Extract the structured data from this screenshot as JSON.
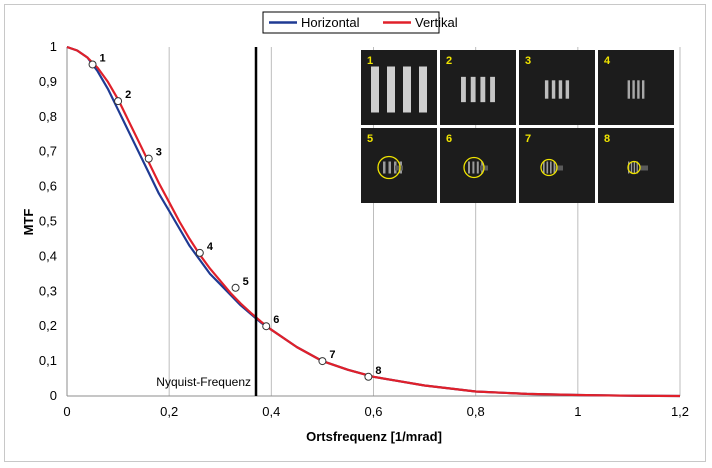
{
  "chart_data": {
    "type": "line",
    "xlabel": "Ortsfrequenz [1/mrad]",
    "ylabel": "MTF",
    "xlim": [
      0,
      1.2
    ],
    "ylim": [
      0,
      1
    ],
    "xticks": [
      "0",
      "0,2",
      "0,4",
      "0,6",
      "0,8",
      "1",
      "1,2"
    ],
    "yticks": [
      "0",
      "0,1",
      "0,2",
      "0,3",
      "0,4",
      "0,5",
      "0,6",
      "0,7",
      "0,8",
      "0,9",
      "1"
    ],
    "grid": "vertical",
    "legend_position": "top-center",
    "series": [
      {
        "name": "Horizontal",
        "color": "#1f3a93",
        "x": [
          0,
          0.02,
          0.04,
          0.06,
          0.08,
          0.1,
          0.12,
          0.14,
          0.16,
          0.18,
          0.2,
          0.22,
          0.24,
          0.26,
          0.28,
          0.3,
          0.32,
          0.34,
          0.36,
          0.38,
          0.4,
          0.45,
          0.5,
          0.55,
          0.6,
          0.7,
          0.8,
          0.9,
          1.0,
          1.1,
          1.2
        ],
        "y": [
          1.0,
          0.99,
          0.97,
          0.93,
          0.88,
          0.82,
          0.76,
          0.7,
          0.64,
          0.58,
          0.53,
          0.48,
          0.43,
          0.39,
          0.35,
          0.32,
          0.29,
          0.26,
          0.235,
          0.21,
          0.19,
          0.14,
          0.1,
          0.075,
          0.055,
          0.03,
          0.013,
          0.006,
          0.003,
          0.001,
          0.0
        ]
      },
      {
        "name": "Vertikal",
        "color": "#e0202a",
        "x": [
          0,
          0.02,
          0.04,
          0.06,
          0.08,
          0.1,
          0.12,
          0.14,
          0.16,
          0.18,
          0.2,
          0.22,
          0.24,
          0.26,
          0.28,
          0.3,
          0.32,
          0.34,
          0.36,
          0.38,
          0.4,
          0.45,
          0.5,
          0.55,
          0.6,
          0.7,
          0.8,
          0.9,
          1.0,
          1.1,
          1.2
        ],
        "y": [
          1.0,
          0.99,
          0.97,
          0.94,
          0.9,
          0.85,
          0.79,
          0.73,
          0.67,
          0.61,
          0.555,
          0.5,
          0.45,
          0.405,
          0.365,
          0.33,
          0.295,
          0.265,
          0.238,
          0.213,
          0.19,
          0.14,
          0.1,
          0.075,
          0.055,
          0.03,
          0.013,
          0.006,
          0.003,
          0.001,
          0.0
        ]
      }
    ],
    "markers": [
      {
        "label": "1",
        "x": 0.05,
        "y": 0.95
      },
      {
        "label": "2",
        "x": 0.1,
        "y": 0.845
      },
      {
        "label": "3",
        "x": 0.16,
        "y": 0.68
      },
      {
        "label": "4",
        "x": 0.26,
        "y": 0.41
      },
      {
        "label": "5",
        "x": 0.33,
        "y": 0.31
      },
      {
        "label": "6",
        "x": 0.39,
        "y": 0.2
      },
      {
        "label": "7",
        "x": 0.5,
        "y": 0.1
      },
      {
        "label": "8",
        "x": 0.59,
        "y": 0.055
      }
    ],
    "nyquist": {
      "x": 0.37,
      "label": "Nyquist-Frequenz"
    },
    "thumbnails": [
      {
        "label": "1",
        "bars": 4
      },
      {
        "label": "2",
        "bars": 4
      },
      {
        "label": "3",
        "bars": 4
      },
      {
        "label": "4",
        "bars": 4
      },
      {
        "label": "5",
        "bars": 4
      },
      {
        "label": "6",
        "bars": 4
      },
      {
        "label": "7",
        "bars": 4
      },
      {
        "label": "8",
        "bars": 4
      }
    ]
  }
}
